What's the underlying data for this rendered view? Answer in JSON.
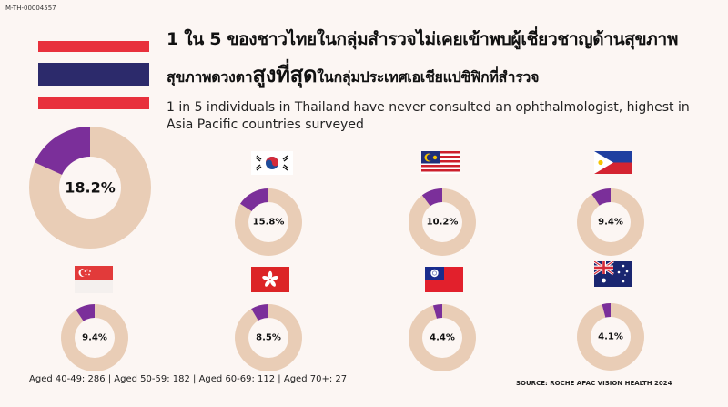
{
  "header": {
    "code": "M-TH-00004557",
    "title_line1": "1 ใน 5 ของชาวไทยในกลุ่มสำรวจไม่เคยเข้าพบผู้เชี่ยวชาญด้านสุขภาพ",
    "title_line2_pre": "สุขภาพดวงตา",
    "title_line2_highlight": "สูงที่สุด",
    "title_line2_post": "ในกลุ่มประเทศเอเชียแปซิฟิกที่สำรวจ",
    "subtitle": "1 in 5 individuals in Thailand have never consulted an ophthalmologist, highest in Asia Pacific countries surveyed"
  },
  "colors": {
    "highlight": "#7b2f9a",
    "remainder": "#e9cdb6",
    "center": "#fcf6f3"
  },
  "chart_data": {
    "type": "pie",
    "series": [
      {
        "flag": "thailand-flag",
        "value": 18.2,
        "label": "18.2%"
      },
      {
        "flag": "south-korea-flag",
        "value": 15.8,
        "label": "15.8%"
      },
      {
        "flag": "malaysia-flag",
        "value": 10.2,
        "label": "10.2%"
      },
      {
        "flag": "philippines-flag",
        "value": 9.4,
        "label": "9.4%"
      },
      {
        "flag": "singapore-flag",
        "value": 9.4,
        "label": "9.4%"
      },
      {
        "flag": "hong-kong-flag",
        "value": 8.5,
        "label": "8.5%"
      },
      {
        "flag": "taiwan-flag",
        "value": 4.4,
        "label": "4.4%"
      },
      {
        "flag": "australia-flag",
        "value": 4.1,
        "label": "4.1%"
      }
    ]
  },
  "footer": {
    "sample": "Aged 40-49: 286 | Aged 50-59: 182 | Aged 60-69: 112 | Aged 70+: 27",
    "source": "SOURCE: ROCHE APAC VISION HEALTH 2024"
  }
}
